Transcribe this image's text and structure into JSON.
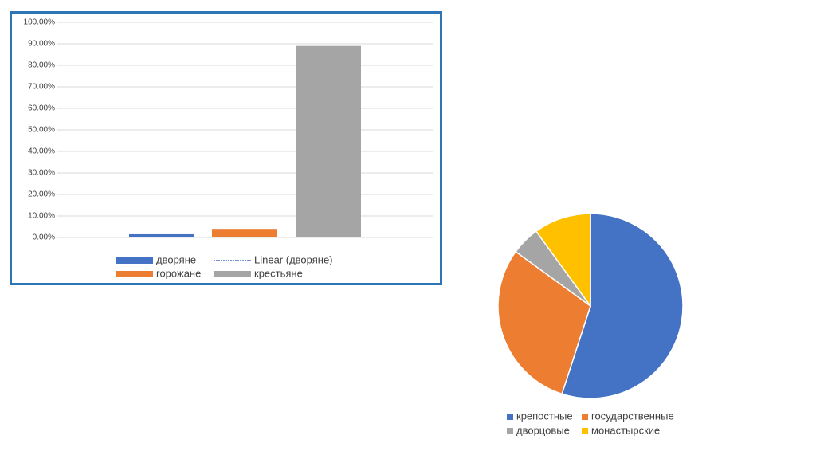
{
  "chart_data": [
    {
      "type": "bar",
      "categories": [
        null
      ],
      "series": [
        {
          "name": "дворяне",
          "color": "#4472c4",
          "values": [
            1.5
          ]
        },
        {
          "name": "горожане",
          "color": "#ed7d31",
          "values": [
            4
          ]
        },
        {
          "name": "крестьяне",
          "color": "#a5a5a5",
          "values": [
            89
          ]
        }
      ],
      "trendline": {
        "name": "Linear (дворяне)",
        "color": "#4472c4"
      },
      "ylim": [
        0,
        100
      ],
      "yticks": [
        {
          "value": 0,
          "label": "0.00%"
        },
        {
          "value": 10,
          "label": "10.00%"
        },
        {
          "value": 20,
          "label": "20.00%"
        },
        {
          "value": 30,
          "label": "30.00%"
        },
        {
          "value": 40,
          "label": "40.00%"
        },
        {
          "value": 50,
          "label": "50.00%"
        },
        {
          "value": 60,
          "label": "60.00%"
        },
        {
          "value": 70,
          "label": "70.00%"
        },
        {
          "value": 80,
          "label": "80.00%"
        },
        {
          "value": 90,
          "label": "90.00%"
        },
        {
          "value": 100,
          "label": "100.00%"
        }
      ],
      "grid": true
    },
    {
      "type": "pie",
      "categories": [
        "крепостные",
        "государственные",
        "дворцовые",
        "монастырские"
      ],
      "values": [
        55,
        30,
        5,
        10
      ],
      "colors": [
        "#4472c4",
        "#ed7d31",
        "#a5a5a5",
        "#ffc000"
      ]
    }
  ]
}
